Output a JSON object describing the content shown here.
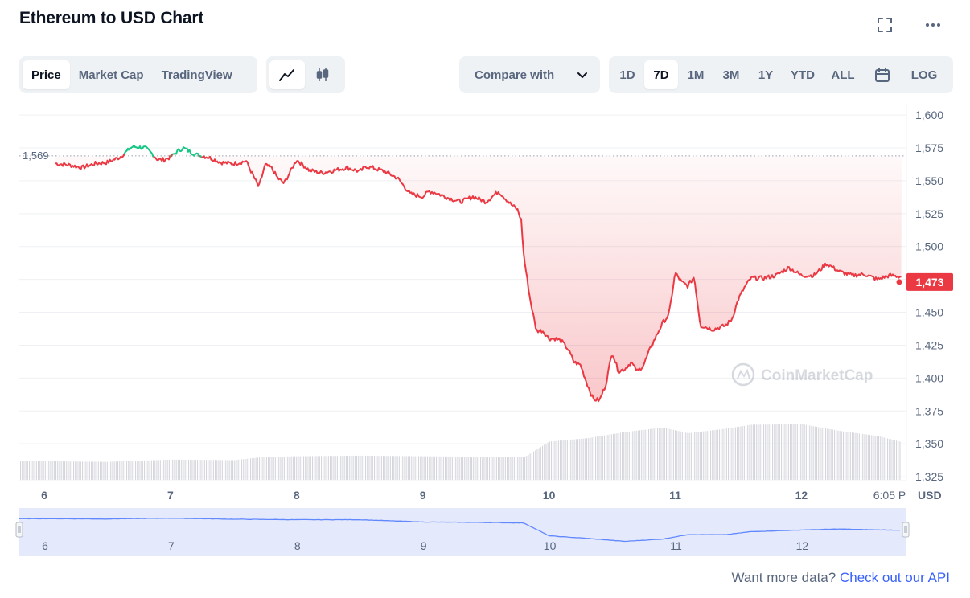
{
  "header": {
    "title": "Ethereum to USD Chart"
  },
  "toolbar": {
    "view_tabs": [
      {
        "label": "Price",
        "active": true
      },
      {
        "label": "Market Cap",
        "active": false
      },
      {
        "label": "TradingView",
        "active": false
      }
    ],
    "chart_type_icons": [
      "line-chart-icon",
      "candlestick-icon"
    ],
    "compare_label": "Compare with",
    "ranges": [
      {
        "label": "1D",
        "active": false
      },
      {
        "label": "7D",
        "active": true
      },
      {
        "label": "1M",
        "active": false
      },
      {
        "label": "3M",
        "active": false
      },
      {
        "label": "1Y",
        "active": false
      },
      {
        "label": "YTD",
        "active": false
      },
      {
        "label": "ALL",
        "active": false
      }
    ],
    "log_label": "LOG",
    "icons": {
      "fullscreen": "fullscreen-icon",
      "more": "more-icon",
      "calendar": "calendar-icon"
    }
  },
  "chart_data": {
    "type": "line",
    "title": "Ethereum to USD Chart",
    "xlabel": "",
    "ylabel": "USD",
    "x_ticks": [
      "6",
      "7",
      "8",
      "9",
      "10",
      "11",
      "12",
      "6:05 P"
    ],
    "y_ticks": [
      "1,600",
      "1,575",
      "1,550",
      "1,525",
      "1,500",
      "1,475",
      "1,450",
      "1,425",
      "1,400",
      "1,375",
      "1,350",
      "1,325"
    ],
    "ylim": [
      1322,
      1608
    ],
    "reference_price": 1569,
    "reference_label": "1,569",
    "current_price": 1473,
    "current_label": "1,473",
    "grid": true,
    "watermark": "CoinMarketCap",
    "colors": {
      "up": "#16c784",
      "down": "#ea3943",
      "volume": "#d4d6dc",
      "navigator_line": "#6188ff",
      "navigator_fill": "#e4e9fb"
    },
    "series": [
      {
        "name": "Price",
        "x": [
          0,
          0.1,
          0.2,
          0.3,
          0.4,
          0.5,
          0.6,
          0.7,
          0.8,
          0.85,
          0.9,
          0.95,
          1.0,
          1.05,
          1.1,
          1.2,
          1.3,
          1.4,
          1.5,
          1.6,
          1.7,
          1.75,
          1.8,
          1.85,
          1.9,
          2.0,
          2.1,
          2.2,
          2.3,
          2.4,
          2.5,
          2.55,
          2.6,
          2.7,
          2.8,
          2.9,
          3.0,
          3.05,
          3.1,
          3.2,
          3.3,
          3.4,
          3.5,
          3.6,
          3.65,
          3.7,
          3.75,
          3.78,
          3.8,
          3.85,
          3.9,
          3.95,
          4.0,
          4.05,
          4.1,
          4.15,
          4.2,
          4.25,
          4.3,
          4.35,
          4.4,
          4.45,
          4.5,
          4.55,
          4.6,
          4.65,
          4.7,
          4.75,
          4.8,
          4.85,
          4.9,
          4.95,
          5.0,
          5.05,
          5.1,
          5.15,
          5.2,
          5.3,
          5.4,
          5.45,
          5.5,
          5.55,
          5.6,
          5.7,
          5.8,
          5.9,
          6.0,
          6.1,
          6.2,
          6.3,
          6.4,
          6.5,
          6.6,
          6.7,
          6.8,
          6.9,
          7.0,
          7.05
        ],
        "values": [
          1566,
          1563,
          1562,
          1560,
          1563,
          1564,
          1568,
          1576,
          1575,
          1571,
          1566,
          1566,
          1568,
          1572,
          1575,
          1570,
          1568,
          1564,
          1563,
          1565,
          1545,
          1562,
          1560,
          1552,
          1548,
          1566,
          1558,
          1556,
          1558,
          1560,
          1557,
          1561,
          1560,
          1557,
          1552,
          1540,
          1538,
          1542,
          1541,
          1537,
          1534,
          1538,
          1534,
          1542,
          1537,
          1532,
          1528,
          1520,
          1493,
          1460,
          1436,
          1436,
          1430,
          1430,
          1428,
          1422,
          1412,
          1410,
          1396,
          1384,
          1383,
          1395,
          1420,
          1405,
          1407,
          1412,
          1405,
          1410,
          1422,
          1432,
          1442,
          1448,
          1480,
          1473,
          1470,
          1477,
          1440,
          1437,
          1440,
          1445,
          1460,
          1469,
          1476,
          1476,
          1478,
          1484,
          1478,
          1478,
          1487,
          1481,
          1478,
          1479,
          1475,
          1478,
          1477,
          1474,
          1473,
          1473
        ]
      },
      {
        "name": "Volume",
        "x": [
          0,
          0.5,
          1.0,
          1.5,
          1.75,
          2.0,
          2.5,
          3.0,
          3.5,
          3.8,
          4.0,
          4.3,
          4.6,
          4.9,
          5.1,
          5.4,
          5.6,
          6.0,
          6.3,
          6.6,
          7.05
        ],
        "values": [
          0.33,
          0.32,
          0.36,
          0.35,
          0.41,
          0.42,
          0.43,
          0.42,
          0.41,
          0.4,
          0.68,
          0.74,
          0.85,
          0.93,
          0.83,
          0.91,
          0.98,
          0.99,
          0.87,
          0.78,
          0.53
        ]
      },
      {
        "name": "Navigator",
        "x": [
          0,
          0.5,
          1.0,
          1.5,
          2.0,
          2.5,
          3.0,
          3.5,
          3.8,
          4.0,
          4.3,
          4.6,
          4.9,
          5.1,
          5.4,
          5.6,
          6.0,
          6.3,
          6.6,
          7.05
        ],
        "values": [
          1566,
          1564,
          1570,
          1562,
          1558,
          1558,
          1540,
          1536,
          1532,
          1430,
          1410,
          1386,
          1404,
          1440,
          1439,
          1463,
          1476,
          1484,
          1477,
          1473
        ]
      }
    ]
  },
  "footer": {
    "text": "Want more data?",
    "link": "Check out our API"
  }
}
